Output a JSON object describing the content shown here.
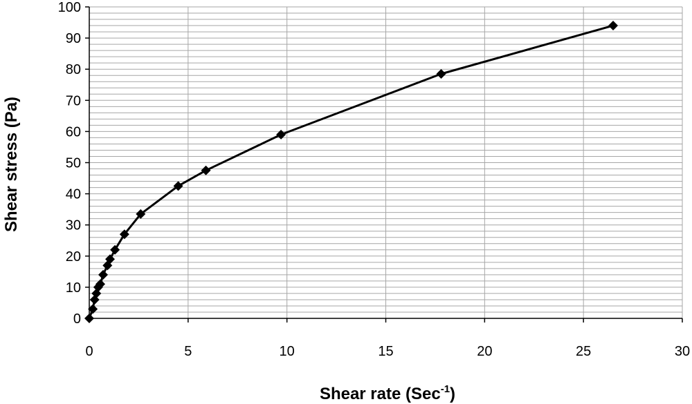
{
  "chart_data": {
    "type": "scatter",
    "mode": "lines+markers",
    "xlabel": {
      "text": "Shear rate (Sec",
      "superscript": "-1",
      "suffix": ")"
    },
    "ylabel": "Shear stress (Pa)",
    "xlim": [
      0,
      30
    ],
    "ylim": [
      0,
      100
    ],
    "x_ticks": [
      0,
      5,
      10,
      15,
      20,
      25,
      30
    ],
    "y_ticks": [
      0,
      10,
      20,
      30,
      40,
      50,
      60,
      70,
      80,
      90,
      100
    ],
    "grid": {
      "horizontal": true,
      "vertical": true,
      "horizontal_minor_step": 2
    },
    "colors": {
      "series": "#000000",
      "grid": "#a6a6a6",
      "axis": "#000000"
    },
    "marker": "diamond",
    "series": [
      {
        "x": [
          0.0,
          0.18,
          0.27,
          0.36,
          0.45,
          0.56,
          0.7,
          0.92,
          1.05,
          1.3,
          1.78,
          2.6,
          4.5,
          5.9,
          9.7,
          17.8,
          26.5
        ],
        "y": [
          0.0,
          3.0,
          6.0,
          8.0,
          10.0,
          11.0,
          14.0,
          17.0,
          19.0,
          22.0,
          27.0,
          33.5,
          42.5,
          47.5,
          59.0,
          78.5,
          94.0
        ]
      }
    ]
  }
}
